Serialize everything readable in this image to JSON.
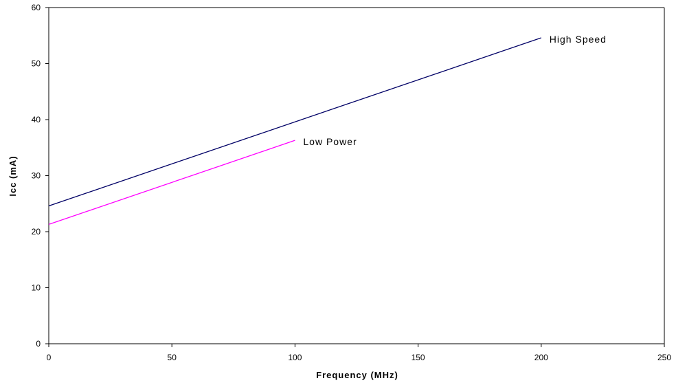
{
  "chart_data": {
    "type": "line",
    "title": "",
    "xlabel": "Frequency (MHz)",
    "ylabel": "Icc (mA)",
    "xlim": [
      0,
      250
    ],
    "ylim": [
      0,
      60
    ],
    "xticks": [
      0,
      50,
      100,
      150,
      200,
      250
    ],
    "yticks": [
      0,
      10,
      20,
      30,
      40,
      50,
      60
    ],
    "grid": false,
    "legend": "none",
    "series": [
      {
        "name": "High Speed",
        "color": "#000066",
        "x": [
          0,
          200
        ],
        "y": [
          24.6,
          54.6
        ]
      },
      {
        "name": "Low Power",
        "color": "#ff00ff",
        "x": [
          0,
          100
        ],
        "y": [
          21.3,
          36.3
        ]
      }
    ]
  }
}
